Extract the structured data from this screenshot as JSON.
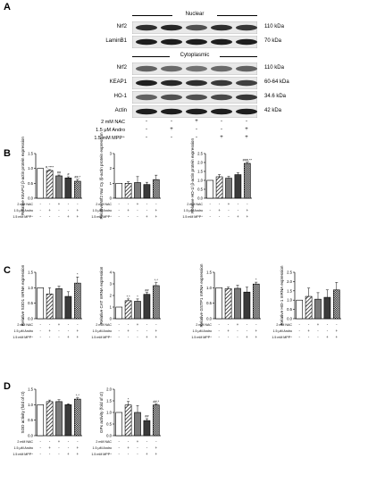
{
  "panel_a": {
    "letter": "A",
    "nuclear_header": "Nuclear",
    "cytoplasmic_header": "Cytoplasmic",
    "nuclear_blots": [
      {
        "name": "Nrf2",
        "size": "110 kDa",
        "band": [
          0.9,
          0.95,
          0.7,
          0.9,
          0.85
        ]
      },
      {
        "name": "LaminB1",
        "size": "70 kDa",
        "band": [
          1.0,
          1.0,
          1.0,
          1.0,
          1.0
        ]
      }
    ],
    "cyto_blots": [
      {
        "name": "Nrf2",
        "size": "110 kDa",
        "band": [
          0.6,
          0.55,
          0.5,
          0.55,
          0.6
        ]
      },
      {
        "name": "KEAP1",
        "size": "60-64 kDa",
        "band": [
          1.0,
          0.95,
          0.9,
          0.85,
          0.8
        ]
      },
      {
        "name": "HO-1",
        "size": "34.6 kDa",
        "band": [
          0.6,
          0.7,
          0.7,
          0.75,
          0.85
        ]
      },
      {
        "name": "Actin",
        "size": "42 kDa",
        "band": [
          1.0,
          1.0,
          1.0,
          1.0,
          1.0
        ]
      }
    ],
    "conditions": [
      {
        "label": "2 mM NAC",
        "signs": [
          "-",
          "-",
          "+",
          "-",
          "-"
        ]
      },
      {
        "label": "1.5 μM Andro",
        "signs": [
          "-",
          "+",
          "-",
          "-",
          "+"
        ]
      },
      {
        "label": "1.5 mM MPP⁺",
        "signs": [
          "-",
          "-",
          "-",
          "+",
          "+"
        ]
      }
    ]
  },
  "cond_labels": [
    "2 mM NAC",
    "1.5 μM Andro",
    "1.5 mM MPP⁺"
  ],
  "pm_rows": [
    [
      "-",
      "-",
      "+",
      "-",
      "-"
    ],
    [
      "-",
      "+",
      "-",
      "-",
      "+"
    ],
    [
      "-",
      "-",
      "-",
      "+",
      "+"
    ]
  ],
  "letters": {
    "b": "B",
    "c": "C",
    "d": "D"
  },
  "colors": {
    "bar_edge": "#000000",
    "gray": "#7a7a7a",
    "dark": "#3a3a3a"
  },
  "chart_data": [
    {
      "type": "bar",
      "panel": "B",
      "ylabel": "Relative KEAP1/ β-actin protein expression",
      "ylim": [
        0,
        1.5
      ],
      "ticks": [
        "0.0",
        "0.5",
        "1.0",
        "1.5"
      ],
      "values": [
        1.0,
        0.93,
        0.75,
        0.68,
        0.57
      ],
      "errors": [
        0.0,
        0.03,
        0.03,
        0.04,
        0.06
      ],
      "annotations": [
        "",
        "#,****",
        "##",
        "#",
        "##,*"
      ]
    },
    {
      "type": "bar",
      "panel": "B",
      "ylabel": "Relative Nrf2 Nu/ Cy /β-actin protein expression",
      "ylim": [
        0,
        3
      ],
      "ticks": [
        "0",
        "1",
        "2",
        "3"
      ],
      "values": [
        1.0,
        1.0,
        1.05,
        0.92,
        1.25
      ],
      "errors": [
        0.0,
        0.1,
        0.4,
        0.15,
        0.3
      ],
      "annotations": [
        "",
        "",
        "",
        "",
        ""
      ]
    },
    {
      "type": "bar",
      "panel": "B",
      "ylabel": "Relative HO-1/ β-actin protein expression",
      "ylim": [
        0,
        2.5
      ],
      "ticks": [
        "0.0",
        "0.5",
        "1.0",
        "1.5",
        "2.0",
        "2.5"
      ],
      "values": [
        1.0,
        1.2,
        1.12,
        1.32,
        1.95
      ],
      "errors": [
        0.0,
        0.12,
        0.1,
        0.1,
        0.06
      ],
      "annotations": [
        "",
        "",
        "",
        "",
        "###,**"
      ]
    },
    {
      "type": "bar",
      "panel": "C",
      "ylabel": "Relative SOD1 mRNA expression",
      "ylim": [
        0,
        1.5
      ],
      "ticks": [
        "0.0",
        "0.5",
        "1.0",
        "1.5"
      ],
      "values": [
        1.0,
        0.8,
        0.97,
        0.72,
        1.15
      ],
      "errors": [
        0.0,
        0.2,
        0.08,
        0.15,
        0.2
      ],
      "annotations": [
        "",
        "",
        "",
        "",
        "*"
      ]
    },
    {
      "type": "bar",
      "panel": "C",
      "ylabel": "Relative CAT mRNA expression",
      "ylim": [
        0,
        4
      ],
      "ticks": [
        "0",
        "1",
        "2",
        "3",
        "4"
      ],
      "values": [
        1.0,
        1.55,
        1.5,
        2.1,
        2.85
      ],
      "errors": [
        0.0,
        0.15,
        0.2,
        0.15,
        0.25
      ],
      "annotations": [
        "",
        "*,*",
        "*",
        "##",
        "*,*"
      ]
    },
    {
      "type": "bar",
      "panel": "C",
      "ylabel": "Relative GSTP1 mRNA expression",
      "ylim": [
        0,
        1.5
      ],
      "ticks": [
        "0.0",
        "0.5",
        "1.0",
        "1.5"
      ],
      "values": [
        1.0,
        0.97,
        0.98,
        0.86,
        1.12
      ],
      "errors": [
        0.0,
        0.05,
        0.1,
        0.16,
        0.06
      ],
      "annotations": [
        "",
        "",
        "",
        "",
        "*"
      ]
    },
    {
      "type": "bar",
      "panel": "C",
      "ylabel": "Relative HO-1 mRNA expression",
      "ylim": [
        0,
        2.5
      ],
      "ticks": [
        "0.0",
        "0.5",
        "1.0",
        "1.5",
        "2.0",
        "2.5"
      ],
      "values": [
        1.0,
        1.2,
        1.05,
        1.15,
        1.55
      ],
      "errors": [
        0.0,
        0.45,
        0.35,
        0.4,
        0.4
      ],
      "annotations": [
        "",
        "",
        "",
        "",
        ""
      ]
    },
    {
      "type": "bar",
      "panel": "D",
      "ylabel": "SOD activity (fold of ct)",
      "ylim": [
        0,
        1.5
      ],
      "ticks": [
        "0.0",
        "0.5",
        "1.0",
        "1.5"
      ],
      "values": [
        1.0,
        1.1,
        1.1,
        1.0,
        1.18
      ],
      "errors": [
        0.0,
        0.05,
        0.06,
        0.03,
        0.04
      ],
      "annotations": [
        "",
        "",
        "",
        "",
        "*,*"
      ]
    },
    {
      "type": "bar",
      "panel": "D",
      "ylabel": "GPx activity (fold of ct)",
      "ylim": [
        0,
        2
      ],
      "ticks": [
        "0.0",
        "0.5",
        "1.0",
        "1.5",
        "2.0"
      ],
      "values": [
        1.0,
        1.32,
        1.0,
        0.65,
        1.32
      ],
      "errors": [
        0.0,
        0.15,
        0.3,
        0.08,
        0.05
      ],
      "annotations": [
        "",
        "*",
        "",
        "##",
        "##,*"
      ]
    }
  ]
}
